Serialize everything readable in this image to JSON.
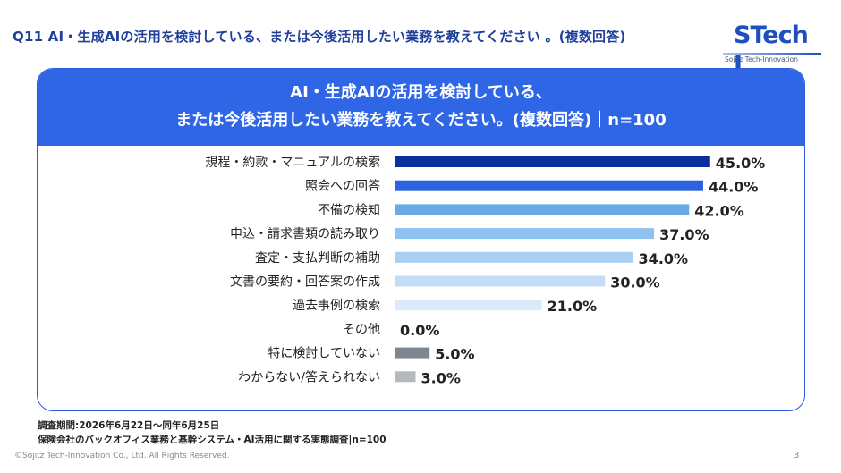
{
  "header": {
    "question": "Q11 AI・生成AIの活用を検討している、または今後活用したい業務を教えてください 。(複数回答)"
  },
  "logo": {
    "main": "STech I",
    "sub": "Sojitz Tech-Innovation"
  },
  "panel": {
    "title_line1": "AI・生成AIの活用を検討している、",
    "title_line2": "または今後活用したい業務を教えてください。(複数回答)｜n=100"
  },
  "chart_data": {
    "type": "bar",
    "orientation": "horizontal",
    "categories": [
      "規程・約款・マニュアルの検索",
      "照会への回答",
      "不備の検知",
      "申込・請求書類の読み取り",
      "査定・支払判断の補助",
      "文書の要約・回答案の作成",
      "過去事例の検索",
      "その他",
      "特に検討していない",
      "わからない/答えられない"
    ],
    "values": [
      45.0,
      44.0,
      42.0,
      37.0,
      34.0,
      30.0,
      21.0,
      0.0,
      5.0,
      3.0
    ],
    "value_labels": [
      "45.0%",
      "44.0%",
      "42.0%",
      "37.0%",
      "34.0%",
      "30.0%",
      "21.0%",
      "0.0%",
      "5.0%",
      "3.0%"
    ],
    "colors": [
      "#0d2f9e",
      "#2e63e0",
      "#6aaae6",
      "#8fc2f0",
      "#a8d0f2",
      "#c3ddf5",
      "#dbeafa",
      "#dbeafa",
      "#7d8791",
      "#b3b9bf"
    ],
    "grid": false,
    "xlim": [
      0,
      50
    ]
  },
  "footer": {
    "period": "調査期間:2026年6月22日〜同年6月25日",
    "survey": "保険会社のバックオフィス業務と基幹システム・AI活用に関する実態調査|n=100",
    "copyright": "©Sojitz Tech-Innovation Co., Ltd. All Rights Reserved.",
    "page": "3"
  }
}
